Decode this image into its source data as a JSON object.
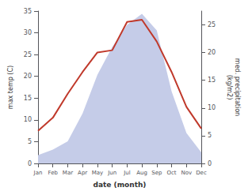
{
  "chart_data": {
    "type": "line",
    "categories": [
      "Jan",
      "Feb",
      "Mar",
      "Apr",
      "May",
      "Jun",
      "Jul",
      "Aug",
      "Sep",
      "Oct",
      "Nov",
      "Dec"
    ],
    "series": [
      {
        "type": "area",
        "axis": "y2",
        "color": "#c5cce8",
        "values": [
          1.5,
          2.5,
          4.0,
          9.0,
          16.0,
          21.0,
          25.0,
          27.0,
          24.0,
          13.0,
          5.5,
          2.0
        ]
      },
      {
        "type": "line",
        "color": "#c0392b",
        "values": [
          7.5,
          10.5,
          16.0,
          21.0,
          25.5,
          26.0,
          32.5,
          33.0,
          28.0,
          21.0,
          13.0,
          8.0
        ]
      }
    ],
    "xlabel": "date (month)",
    "ylabel": "max temp (C)",
    "y2label": "med. precipitation\n(kg/m2)",
    "ylim": [
      0,
      35
    ],
    "yticks": [
      0,
      5,
      10,
      15,
      20,
      25,
      30,
      35
    ],
    "y2lim": [
      0,
      27.5
    ],
    "y2ticks": [
      0,
      5,
      10,
      15,
      20,
      25
    ],
    "grid": false
  }
}
